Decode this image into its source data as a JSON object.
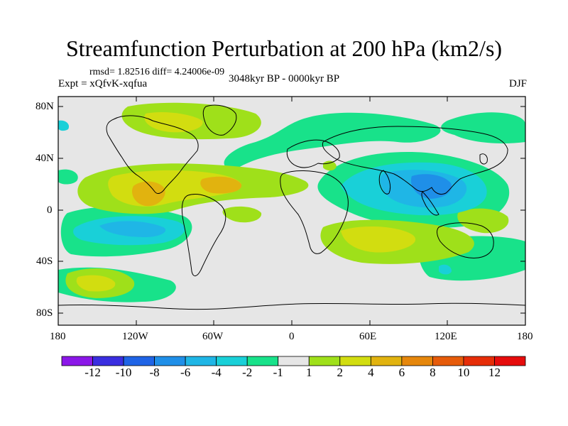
{
  "title": "Streamfunction Perturbation at 200 hPa (km2/s)",
  "stats": "rmsd= 1.82516  diff= 4.24006e-09",
  "experiment": "Expt = xQfvK-xqfua",
  "period": "3048kyr BP - 0000kyr BP",
  "season": "DJF",
  "lat_ticks": [
    "80N",
    "40N",
    "0",
    "40S",
    "80S"
  ],
  "lon_ticks": [
    "180",
    "120W",
    "60W",
    "0",
    "60E",
    "120E",
    "180"
  ],
  "colorbar": {
    "labels": [
      "-12",
      "-10",
      "-8",
      "-6",
      "-4",
      "-2",
      "-1",
      "1",
      "2",
      "4",
      "6",
      "8",
      "10",
      "12"
    ],
    "colors": [
      "#8b17e8",
      "#3a2ee0",
      "#1f64e6",
      "#1f8fe8",
      "#1fb6e6",
      "#19d0d8",
      "#18e28a",
      "#e6e6e6",
      "#9fe01a",
      "#d2dd10",
      "#e1b30f",
      "#e6870c",
      "#e65b0a",
      "#e62d08",
      "#e60c0c"
    ]
  },
  "anomalies": [
    {
      "name": "north-america-positive",
      "color": "#9fe01a",
      "lon": -85,
      "lat": 65
    },
    {
      "name": "north-america-positive-core",
      "color": "#d2dd10",
      "lon": -95,
      "lat": 70
    },
    {
      "name": "tropical-atlantic-positive",
      "color": "#d2dd10",
      "lon": -90,
      "lat": 20
    },
    {
      "name": "tropical-atlantic-positive-core",
      "color": "#e1b30f",
      "lon": -120,
      "lat": 12
    },
    {
      "name": "south-pacific-negative",
      "color": "#19d0d8",
      "lon": -110,
      "lat": -18
    },
    {
      "name": "asia-negative",
      "color": "#1fb6e6",
      "lon": 90,
      "lat": 25
    },
    {
      "name": "asia-negative-core",
      "color": "#1f8fe8",
      "lon": 100,
      "lat": 22
    },
    {
      "name": "indian-ocean-positive",
      "color": "#d2dd10",
      "lon": 75,
      "lat": -25
    },
    {
      "name": "southeast-pacific-positive",
      "color": "#e1b30f",
      "lon": -150,
      "lat": -55
    },
    {
      "name": "australia-negative",
      "color": "#18e28a",
      "lon": 125,
      "lat": -45
    }
  ]
}
